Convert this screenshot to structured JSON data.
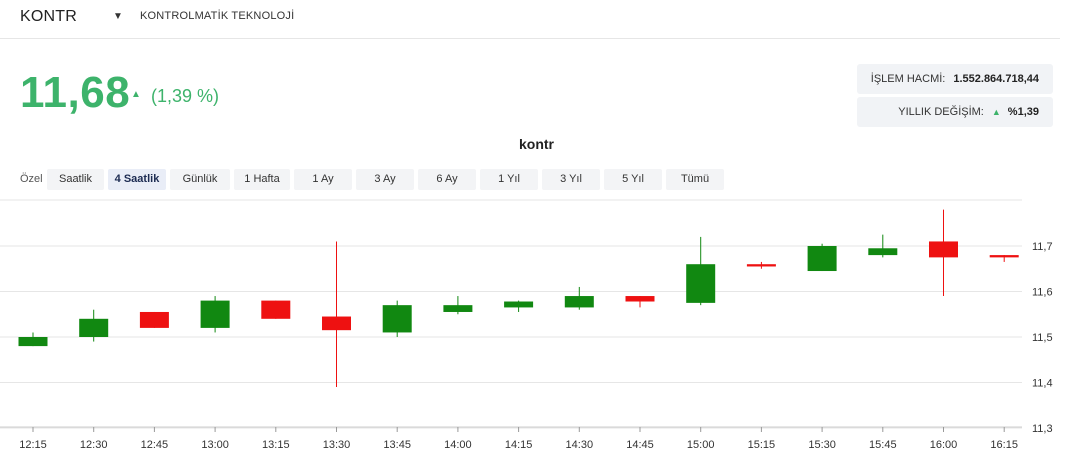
{
  "header": {
    "ticker": "KONTR",
    "company": "KONTROLMATİK TEKNOLOJİ"
  },
  "quote": {
    "price": "11,68",
    "change_pct": "(1,39 %)"
  },
  "stats": {
    "volume_label": "İŞLEM HACMİ:",
    "volume_value": "1.552.864.718,44",
    "yearly_label": "YILLIK DEĞİŞİM:",
    "yearly_value": "%1,39"
  },
  "range_selector": {
    "label": "Özel",
    "buttons": [
      "Saatlik",
      "4 Saatlik",
      "Günlük",
      "1 Hafta",
      "1 Ay",
      "3 Ay",
      "6 Ay",
      "1 Yıl",
      "3 Yıl",
      "5 Yıl",
      "Tümü"
    ],
    "active": "4 Saatlik"
  },
  "colors": {
    "up": "#118811",
    "down": "#ee1111",
    "accent": "#3db36b"
  },
  "chart_data": {
    "type": "candlestick",
    "title": "kontr",
    "x_categories": [
      "12:15",
      "12:30",
      "12:45",
      "13:00",
      "13:15",
      "13:30",
      "13:45",
      "14:00",
      "14:15",
      "14:30",
      "14:45",
      "15:00",
      "15:15",
      "15:30",
      "15:45",
      "16:00",
      "16:15"
    ],
    "y_ticks": [
      11.3,
      11.4,
      11.5,
      11.6,
      11.7
    ],
    "y_tick_labels": [
      "11,3",
      "11,4",
      "11,5",
      "11,6",
      "11,7"
    ],
    "ylim": [
      11.3,
      11.72
    ],
    "y_axis_position": "right",
    "grid": true,
    "series": [
      {
        "time": "12:15",
        "open": 11.48,
        "high": 11.51,
        "low": 11.48,
        "close": 11.5
      },
      {
        "time": "12:30",
        "open": 11.5,
        "high": 11.56,
        "low": 11.49,
        "close": 11.54
      },
      {
        "time": "12:45",
        "open": 11.555,
        "high": 11.555,
        "low": 11.52,
        "close": 11.52
      },
      {
        "time": "13:00",
        "open": 11.52,
        "high": 11.59,
        "low": 11.51,
        "close": 11.58
      },
      {
        "time": "13:15",
        "open": 11.58,
        "high": 11.58,
        "low": 11.54,
        "close": 11.54
      },
      {
        "time": "13:30",
        "open": 11.545,
        "high": 11.71,
        "low": 11.39,
        "close": 11.515
      },
      {
        "time": "13:45",
        "open": 11.51,
        "high": 11.58,
        "low": 11.5,
        "close": 11.57
      },
      {
        "time": "14:00",
        "open": 11.555,
        "high": 11.59,
        "low": 11.55,
        "close": 11.57
      },
      {
        "time": "14:15",
        "open": 11.565,
        "high": 11.58,
        "low": 11.555,
        "close": 11.578
      },
      {
        "time": "14:30",
        "open": 11.565,
        "high": 11.61,
        "low": 11.56,
        "close": 11.59
      },
      {
        "time": "14:45",
        "open": 11.59,
        "high": 11.59,
        "low": 11.565,
        "close": 11.578
      },
      {
        "time": "15:00",
        "open": 11.575,
        "high": 11.72,
        "low": 11.57,
        "close": 11.66
      },
      {
        "time": "15:15",
        "open": 11.66,
        "high": 11.665,
        "low": 11.65,
        "close": 11.655
      },
      {
        "time": "15:30",
        "open": 11.645,
        "high": 11.705,
        "low": 11.645,
        "close": 11.7
      },
      {
        "time": "15:45",
        "open": 11.68,
        "high": 11.725,
        "low": 11.675,
        "close": 11.695
      },
      {
        "time": "16:00",
        "open": 11.71,
        "high": 11.78,
        "low": 11.59,
        "close": 11.675
      },
      {
        "time": "16:15",
        "open": 11.68,
        "high": 11.68,
        "low": 11.665,
        "close": 11.675
      }
    ]
  }
}
